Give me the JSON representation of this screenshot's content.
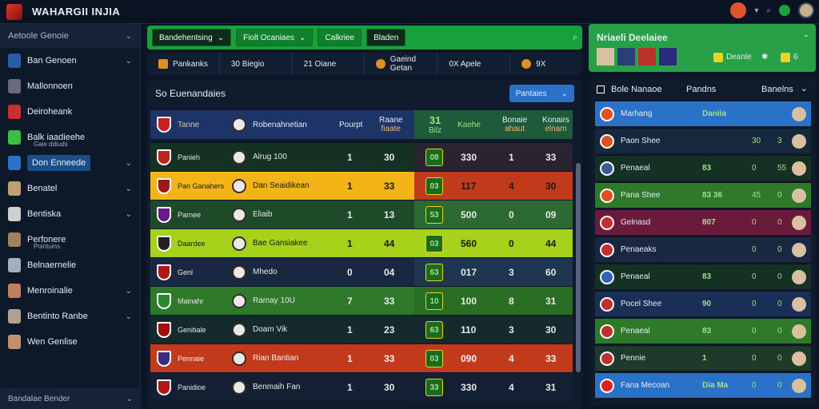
{
  "app": {
    "title": "WAHARGII INJIA"
  },
  "colors": {
    "accent": "#18a13a",
    "blue": "#2a72c8",
    "yellow": "#f0b416",
    "red": "#c23a1c",
    "lime": "#a6d21c"
  },
  "sidebar": {
    "header": "Aetoole Genoie",
    "items": [
      {
        "label": "Ban Genoen",
        "icon": "calendar-icon",
        "chev": true
      },
      {
        "label": "Mallonnoen",
        "icon": "shield-icon",
        "chev": false
      },
      {
        "label": "Deiroheank",
        "icon": "player-icon",
        "chev": false
      },
      {
        "label": "Balk iaadieehe",
        "sub": "Gaie ddiuds",
        "icon": "star-icon",
        "chev": false
      },
      {
        "label": "Don Enneede",
        "icon": "user-icon",
        "chev": true,
        "active": true
      },
      {
        "label": "Benatel",
        "icon": "player-icon",
        "chev": true
      },
      {
        "label": "Bentiska",
        "icon": "player-icon",
        "chev": true
      },
      {
        "label": "Perfonere",
        "sub": "Pointuins",
        "icon": "player-icon",
        "chev": false
      },
      {
        "label": "Belnaernelie",
        "icon": "player-icon",
        "chev": false
      },
      {
        "label": "Menroinalie",
        "icon": "player-icon",
        "chev": true
      },
      {
        "label": "Bentinto Ranbe",
        "icon": "player-icon",
        "chev": true
      },
      {
        "label": "Wen Genlise",
        "icon": "player-icon",
        "chev": false
      }
    ],
    "footer": "Bandalae Bender"
  },
  "filters": [
    {
      "label": "Bandehentsing",
      "chev": true,
      "dark": true
    },
    {
      "label": "Fiolt Ocaniaes",
      "chev": true,
      "dark": false
    },
    {
      "label": "Calkriee",
      "chev": false,
      "dark": false
    },
    {
      "label": "Bladen",
      "chev": false,
      "dark": true
    }
  ],
  "stats": [
    {
      "label": "Pankanks",
      "icon": "trophy-icon"
    },
    {
      "label": "30 Biegio"
    },
    {
      "label": "21 Oiane"
    },
    {
      "label": "Gaeind Getan",
      "icon": "coin-icon"
    },
    {
      "label": "0X Apele"
    },
    {
      "label": "9X",
      "icon": "coin-icon"
    }
  ],
  "main": {
    "title": "So Euenandaies",
    "dropdown": "Pantaies",
    "headers": {
      "team": "Tanne",
      "player": "Robenahnetian",
      "c1": "Pourpt",
      "c2": "Raane",
      "c2b": "fiaate",
      "c3": "31",
      "c3b": "Bilz",
      "c4": "Kaehe",
      "c5": "Bonaie",
      "c5b": "ahaut",
      "c6": "Konairs",
      "c6b": "elnam"
    },
    "rows": [
      {
        "team": "Panieh",
        "player": "Alrug 100",
        "n1": "1",
        "n2": "30",
        "badge": "08",
        "n4": "330",
        "n5": "1",
        "n6": "33",
        "bg": "#143124",
        "hl": "#2a2430",
        "color": "#e8e8e8"
      },
      {
        "team": "Pan Ganahers",
        "player": "Dan Seaidikean",
        "n1": "1",
        "n2": "33",
        "badge": "03",
        "n4": "117",
        "n5": "4",
        "n6": "30",
        "bg": "#f2b416",
        "hl": "#c23a1c",
        "color": "#1a1a1a"
      },
      {
        "team": "Parnee",
        "player": "Eliaib",
        "n1": "1",
        "n2": "13",
        "badge": "53",
        "n4": "500",
        "n5": "0",
        "n6": "09",
        "bg": "#1e4a2a",
        "hl": "#2b6a30",
        "color": "#e8e8e8"
      },
      {
        "team": "Daardee",
        "player": "Bae Gansiakee",
        "n1": "1",
        "n2": "44",
        "badge": "03",
        "n4": "560",
        "n5": "0",
        "n6": "44",
        "bg": "#a6d21c",
        "hl": "#a6d21c",
        "color": "#1a1a1a"
      },
      {
        "team": "Genl",
        "player": "Mhedo",
        "n1": "0",
        "n2": "04",
        "badge": "63",
        "n4": "017",
        "n5": "3",
        "n6": "60",
        "bg": "#1a2740",
        "hl": "#1f3650",
        "color": "#e8e8e8"
      },
      {
        "team": "Mainahr",
        "player": "Ramay 10U",
        "n1": "7",
        "n2": "33",
        "badge": "10",
        "n4": "100",
        "n5": "8",
        "n6": "31",
        "bg": "#2e7a2a",
        "hl": "#2a6e26",
        "color": "#e8e8e8"
      },
      {
        "team": "Genitiale",
        "player": "Doam Vik",
        "n1": "1",
        "n2": "23",
        "badge": "63",
        "n4": "110",
        "n5": "3",
        "n6": "30",
        "bg": "#152a2e",
        "hl": "#152a2e",
        "color": "#e8e8e8"
      },
      {
        "team": "Pennaie",
        "player": "Rian Bantian",
        "n1": "1",
        "n2": "33",
        "badge": "03",
        "n4": "090",
        "n5": "4",
        "n6": "33",
        "bg": "#c23a1c",
        "hl": "#c23a1c",
        "color": "#f0f0f0"
      },
      {
        "team": "Panidioe",
        "player": "Benmaih Fan",
        "n1": "1",
        "n2": "30",
        "badge": "33",
        "n4": "330",
        "n5": "4",
        "n6": "31",
        "bg": "#132033",
        "hl": "#132033",
        "color": "#e8e8e8"
      }
    ]
  },
  "right": {
    "header": "Nriaeli Deelaiee",
    "live": "Deanle",
    "live_n": "6",
    "panel_title": "Bole Nanaoe",
    "panel_col": "Pandns",
    "panel_col2": "Banelns",
    "rows": [
      {
        "label": "Marhang",
        "mid": "Daniia",
        "r1": "",
        "r2": "",
        "bg": "#2a72c8"
      },
      {
        "label": "Paon Shee",
        "mid": "",
        "r1": "30",
        "r2": "3",
        "bg": "#16283c"
      },
      {
        "label": "Penaeal",
        "mid": "83",
        "r1": "0",
        "r2": "55",
        "bg": "#143124"
      },
      {
        "label": "Pana Shee",
        "mid": "83 36",
        "r1": "45",
        "r2": "0",
        "bg": "#2e7a2a"
      },
      {
        "label": "Gelnasd",
        "mid": "807",
        "r1": "0",
        "r2": "0",
        "bg": "#6a1b3c"
      },
      {
        "label": "Penaeaks",
        "mid": "",
        "r1": "0",
        "r2": "0",
        "bg": "#1a2740"
      },
      {
        "label": "Penaeal",
        "mid": "83",
        "r1": "0",
        "r2": "0",
        "bg": "#143124"
      },
      {
        "label": "Pocel Shee",
        "mid": "90",
        "r1": "0",
        "r2": "0",
        "bg": "#1a2f55"
      },
      {
        "label": "Penaeal",
        "mid": "83",
        "r1": "0",
        "r2": "0",
        "bg": "#2e7a2a"
      },
      {
        "label": "Pennie",
        "mid": "1",
        "r1": "0",
        "r2": "0",
        "bg": "#1d3a2a"
      },
      {
        "label": "Fana Mecoan",
        "mid": "Dia Ma",
        "r1": "0",
        "r2": "0",
        "bg": "#2a72c8"
      }
    ]
  }
}
